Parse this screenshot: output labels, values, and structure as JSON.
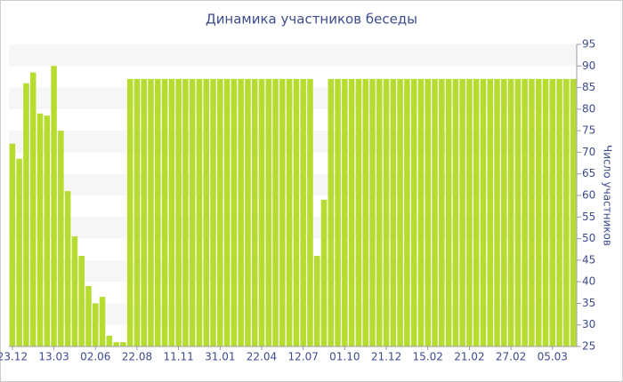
{
  "chart_data": {
    "type": "bar",
    "title": "Динамика участников беседы",
    "y_label": "Число участников",
    "categories": [
      "23.12",
      null,
      null,
      null,
      null,
      null,
      "13.03",
      null,
      null,
      null,
      null,
      null,
      "02.06",
      null,
      null,
      null,
      null,
      null,
      "22.08",
      null,
      null,
      null,
      null,
      null,
      "11.11",
      null,
      null,
      null,
      null,
      null,
      "31.01",
      null,
      null,
      null,
      null,
      null,
      "22.04",
      null,
      null,
      null,
      null,
      null,
      "12.07",
      null,
      null,
      null,
      null,
      null,
      "01.10",
      null,
      null,
      null,
      null,
      null,
      "21.12",
      null,
      null,
      null,
      null,
      null,
      "15.02",
      null,
      null,
      null,
      null,
      null,
      "21.02",
      null,
      null,
      null,
      null,
      null,
      "27.02",
      null,
      null,
      null,
      null,
      null,
      "05.03",
      null,
      null,
      null
    ],
    "values": [
      72,
      68.5,
      86,
      88.5,
      79,
      78.5,
      90,
      75,
      61,
      50.5,
      46,
      39,
      35,
      36.5,
      27.5,
      26,
      26,
      87,
      87,
      87,
      87,
      87,
      87,
      87,
      87,
      87,
      87,
      87,
      87,
      87,
      87,
      87,
      87,
      87,
      87,
      87,
      87,
      87,
      87,
      87,
      87,
      87,
      87,
      87,
      46,
      59,
      87,
      87,
      87,
      87,
      87,
      87,
      87,
      87,
      87,
      87,
      87,
      87,
      87,
      87,
      87,
      87,
      87,
      87,
      87,
      87,
      87,
      87,
      87,
      87,
      87,
      87,
      87,
      87,
      87,
      87,
      87,
      87,
      87,
      87,
      87,
      87
    ],
    "color": "#b6dc30",
    "ylim": [
      25,
      95
    ],
    "yticks": [
      25,
      30,
      35,
      40,
      45,
      50,
      55,
      60,
      65,
      70,
      75,
      80,
      85,
      90,
      95
    ],
    "grid": true
  }
}
